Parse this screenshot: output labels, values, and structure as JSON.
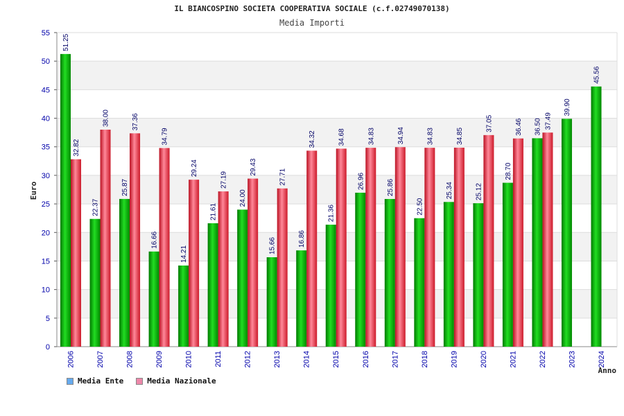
{
  "chart_data": {
    "type": "bar",
    "title": "IL BIANCOSPINO SOCIETA COOPERATIVA SOCIALE (c.f.02749070138)",
    "subtitle": "Media Importi",
    "xlabel": "Anno",
    "ylabel": "Euro",
    "ylim": [
      0,
      55
    ],
    "yticks": [
      0,
      5,
      10,
      15,
      20,
      25,
      30,
      35,
      40,
      45,
      50,
      55
    ],
    "grid": true,
    "categories": [
      "2006",
      "2007",
      "2008",
      "2009",
      "2010",
      "2011",
      "2012",
      "2013",
      "2014",
      "2015",
      "2016",
      "2017",
      "2018",
      "2019",
      "2020",
      "2021",
      "2022",
      "2023",
      "2024"
    ],
    "series": [
      {
        "name": "Media Ente",
        "color": "#00aa00",
        "values": [
          51.25,
          22.37,
          25.87,
          16.66,
          14.21,
          21.61,
          24.0,
          15.66,
          16.86,
          21.36,
          26.96,
          25.86,
          22.5,
          25.34,
          25.12,
          28.7,
          36.5,
          39.9,
          45.56
        ],
        "labels": [
          "51.25",
          "22.37",
          "25.87",
          "16.66",
          "14.21",
          "21.61",
          "24.00",
          "15.66",
          "16.86",
          "21.36",
          "26.96",
          "25.86",
          "22.50",
          "25.34",
          "25.12",
          "28.70",
          "36.50",
          "39.90",
          "45.56"
        ]
      },
      {
        "name": "Media Nazionale",
        "color": "#dd2233",
        "values": [
          32.82,
          38.0,
          37.36,
          34.79,
          29.24,
          27.19,
          29.43,
          27.71,
          34.32,
          34.68,
          34.83,
          34.94,
          34.83,
          34.85,
          37.05,
          36.46,
          37.49,
          null,
          null
        ],
        "labels": [
          "32.82",
          "38.00",
          "37.36",
          "34.79",
          "29.24",
          "27.19",
          "29.43",
          "27.71",
          "34.32",
          "34.68",
          "34.83",
          "34.94",
          "34.83",
          "34.85",
          "37.05",
          "36.46",
          "37.49",
          "",
          ""
        ]
      }
    ],
    "legend": {
      "position": "bottom-left",
      "items": [
        {
          "label": "Media Ente",
          "color": "#66aaee"
        },
        {
          "label": "Media Nazionale",
          "color": "#ee88aa"
        }
      ]
    }
  }
}
